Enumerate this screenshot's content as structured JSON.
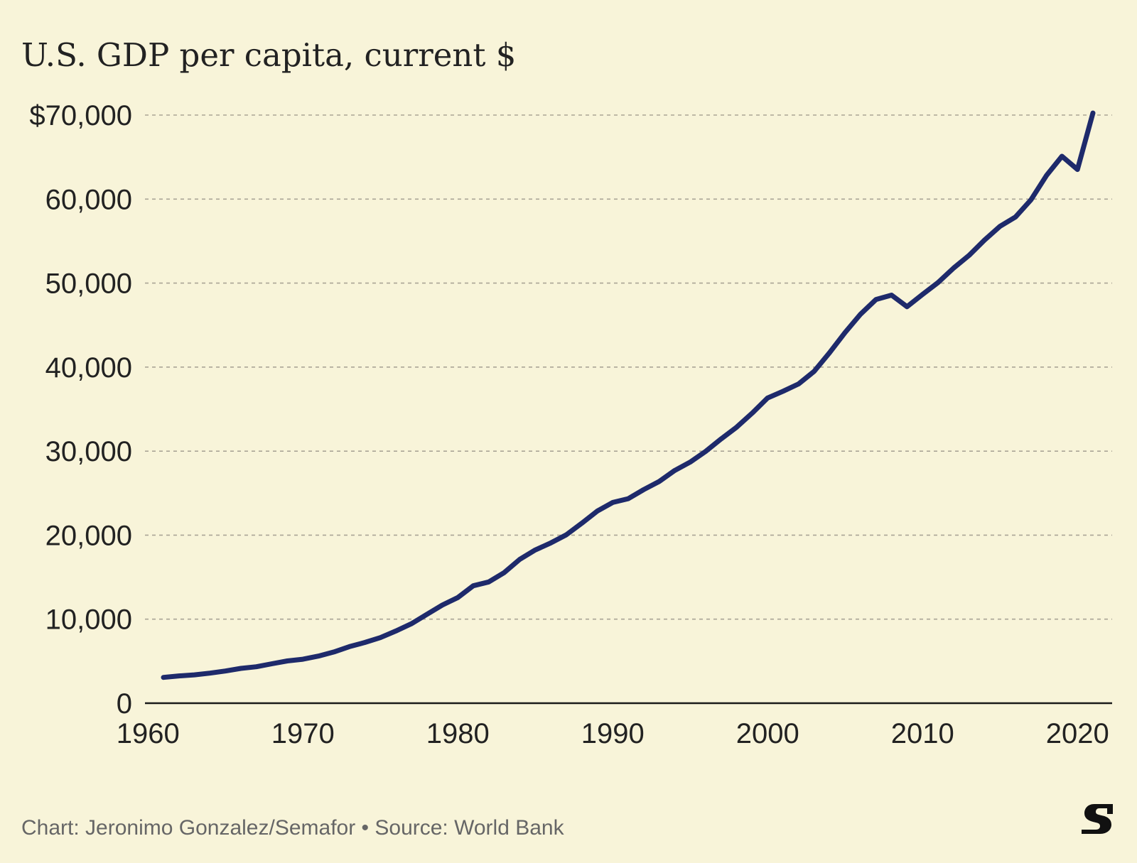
{
  "colors": {
    "background": "#f8f4d9",
    "line": "#1e2a6b",
    "text": "#222222",
    "grid": "#aaa596",
    "axis": "#1a1a1a",
    "credit": "#666666"
  },
  "credit": "Chart: Jeronimo Gonzalez/Semafor • Source: World Bank",
  "logo_icon": "semafor-s-logo",
  "chart_data": {
    "type": "line",
    "title": "U.S. GDP per capita, current $",
    "xlabel": "",
    "ylabel": "",
    "xlim": [
      1960,
      2022
    ],
    "ylim": [
      0,
      70000
    ],
    "grid": true,
    "legend": "none",
    "x_ticks": [
      1960,
      1970,
      1980,
      1990,
      2000,
      2010,
      2020
    ],
    "x_tick_labels": [
      "1960",
      "1970",
      "1980",
      "1990",
      "2000",
      "2010",
      "2020"
    ],
    "y_ticks": [
      0,
      10000,
      20000,
      30000,
      40000,
      50000,
      60000,
      70000
    ],
    "y_tick_labels": [
      "0",
      "10,000",
      "20,000",
      "30,000",
      "40,000",
      "50,000",
      "60,000",
      "$70,000"
    ],
    "x": [
      1961,
      1962,
      1963,
      1964,
      1965,
      1966,
      1967,
      1968,
      1969,
      1970,
      1971,
      1972,
      1973,
      1974,
      1975,
      1976,
      1977,
      1978,
      1979,
      1980,
      1981,
      1982,
      1983,
      1984,
      1985,
      1986,
      1987,
      1988,
      1989,
      1990,
      1991,
      1992,
      1993,
      1994,
      1995,
      1996,
      1997,
      1998,
      1999,
      2000,
      2001,
      2002,
      2003,
      2004,
      2005,
      2006,
      2007,
      2008,
      2009,
      2010,
      2011,
      2012,
      2013,
      2014,
      2015,
      2016,
      2017,
      2018,
      2019,
      2020,
      2021
    ],
    "y": [
      3067,
      3244,
      3375,
      3574,
      3828,
      4146,
      4336,
      4696,
      5032,
      5234,
      5609,
      6094,
      6726,
      7226,
      7801,
      8592,
      9453,
      10565,
      11674,
      12575,
      13976,
      14434,
      15544,
      17121,
      18237,
      19071,
      20039,
      21417,
      22857,
      23889,
      24342,
      25419,
      26387,
      27695,
      28691,
      29968,
      31459,
      32854,
      34516,
      36330,
      37134,
      37998,
      39490,
      41725,
      44123,
      46302,
      48050,
      48570,
      47195,
      48651,
      50066,
      51784,
      53291,
      55124,
      56763,
      57867,
      59915,
      62805,
      65095,
      63528,
      70248
    ]
  }
}
